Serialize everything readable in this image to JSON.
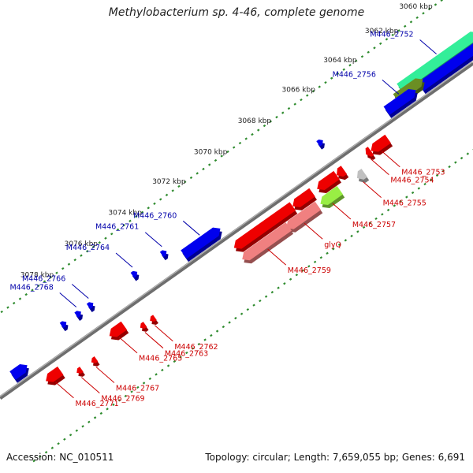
{
  "title": "Methylobacterium sp. 4-46, complete genome",
  "footer": {
    "accession": "Accession: NC_010511",
    "summary": "Topology: circular; Length: 7,659,055 bp; Genes: 6,691"
  },
  "colors": {
    "backbone": "#7a7a7a",
    "tick_dots": "#2e8b2e",
    "gene_forward": "#0000ee",
    "gene_reverse": "#ee0000",
    "gene_reverse_light": "#f08080",
    "gene_green": "#33ee99",
    "gene_olive": "#6b8e23",
    "gene_lime": "#99ee44",
    "gene_grey": "#c0c0c0",
    "label_forward": "#0000aa",
    "label_reverse": "#cc0000"
  },
  "kbp_labels": [
    {
      "text": "3060 kbp",
      "t": 0.955
    },
    {
      "text": "3062 kbp",
      "t": 0.885
    },
    {
      "text": "3064 kbp",
      "t": 0.8
    },
    {
      "text": "3066 kbp",
      "t": 0.715
    },
    {
      "text": "3068 kbp",
      "t": 0.625
    },
    {
      "text": "3070 kbp",
      "t": 0.535
    },
    {
      "text": "3072 kbp",
      "t": 0.45
    },
    {
      "text": "3074 kbp",
      "t": 0.36
    },
    {
      "text": "3076 kbp",
      "t": 0.27
    },
    {
      "text": "3078 kbp",
      "t": 0.18
    }
  ],
  "genes_forward": [
    {
      "label": "M446_2752",
      "t1": 0.86,
      "t2": 1.02,
      "lane": "far"
    },
    {
      "label": "",
      "t1": 0.89,
      "t2": 1.02,
      "lane": "near"
    },
    {
      "label": "",
      "t1": 0.845,
      "t2": 0.9,
      "lane": "mid"
    },
    {
      "label": "M446_2756",
      "t1": 0.82,
      "t2": 0.88,
      "lane": "near"
    },
    {
      "label": "",
      "t1": 0.695,
      "t2": 0.705,
      "lane": "small"
    },
    {
      "label": "M446_2760",
      "t1": 0.405,
      "t2": 0.48,
      "lane": "near"
    },
    {
      "label": "M446_2761",
      "t1": 0.375,
      "t2": 0.385,
      "lane": "small"
    },
    {
      "label": "M446_2764",
      "t1": 0.315,
      "t2": 0.325,
      "lane": "small"
    },
    {
      "label": "M446_2766",
      "t1": 0.225,
      "t2": 0.235,
      "lane": "small"
    },
    {
      "label": "M446_2768",
      "t1": 0.2,
      "t2": 0.21,
      "lane": "small"
    },
    {
      "label": "",
      "t1": 0.17,
      "t2": 0.18,
      "lane": "small"
    },
    {
      "label": "",
      "t1": 0.055,
      "t2": 0.085,
      "lane": "near"
    },
    {
      "label": "",
      "t1": 0.0,
      "t2": 0.02,
      "lane": "near"
    }
  ],
  "genes_reverse": [
    {
      "label": "M446_2753",
      "t1": 0.76,
      "t2": 0.795,
      "lane": "near",
      "shade": "red"
    },
    {
      "label": "M446_2754",
      "t1": 0.75,
      "t2": 0.76,
      "lane": "near",
      "shade": "red"
    },
    {
      "label": "M446_2755",
      "t1": 0.715,
      "t2": 0.73,
      "lane": "far",
      "shade": "grey"
    },
    {
      "label": "",
      "t1": 0.69,
      "t2": 0.705,
      "lane": "near",
      "shade": "red"
    },
    {
      "label": "",
      "t1": 0.65,
      "t2": 0.69,
      "lane": "near",
      "shade": "red"
    },
    {
      "label": "M446_2757",
      "t1": 0.64,
      "t2": 0.68,
      "lane": "far",
      "shade": "lime"
    },
    {
      "label": "",
      "t1": 0.6,
      "t2": 0.64,
      "lane": "near",
      "shade": "red"
    },
    {
      "label": "glyQ",
      "t1": 0.57,
      "t2": 0.635,
      "lane": "far",
      "shade": "light"
    },
    {
      "label": "",
      "t1": 0.48,
      "t2": 0.6,
      "lane": "near",
      "shade": "red"
    },
    {
      "label": "M446_2759",
      "t1": 0.48,
      "t2": 0.575,
      "lane": "far",
      "shade": "light"
    },
    {
      "label": "M446_2762",
      "t1": 0.295,
      "t2": 0.305,
      "lane": "small",
      "shade": "red"
    },
    {
      "label": "M446_2763",
      "t1": 0.275,
      "t2": 0.285,
      "lane": "small",
      "shade": "red"
    },
    {
      "label": "M446_2765",
      "t1": 0.225,
      "t2": 0.255,
      "lane": "near",
      "shade": "red"
    },
    {
      "label": "M446_2767",
      "t1": 0.175,
      "t2": 0.185,
      "lane": "small",
      "shade": "red"
    },
    {
      "label": "M446_2769",
      "t1": 0.145,
      "t2": 0.155,
      "lane": "small",
      "shade": "red"
    },
    {
      "label": "M446_2771",
      "t1": 0.095,
      "t2": 0.125,
      "lane": "near",
      "shade": "red"
    }
  ]
}
